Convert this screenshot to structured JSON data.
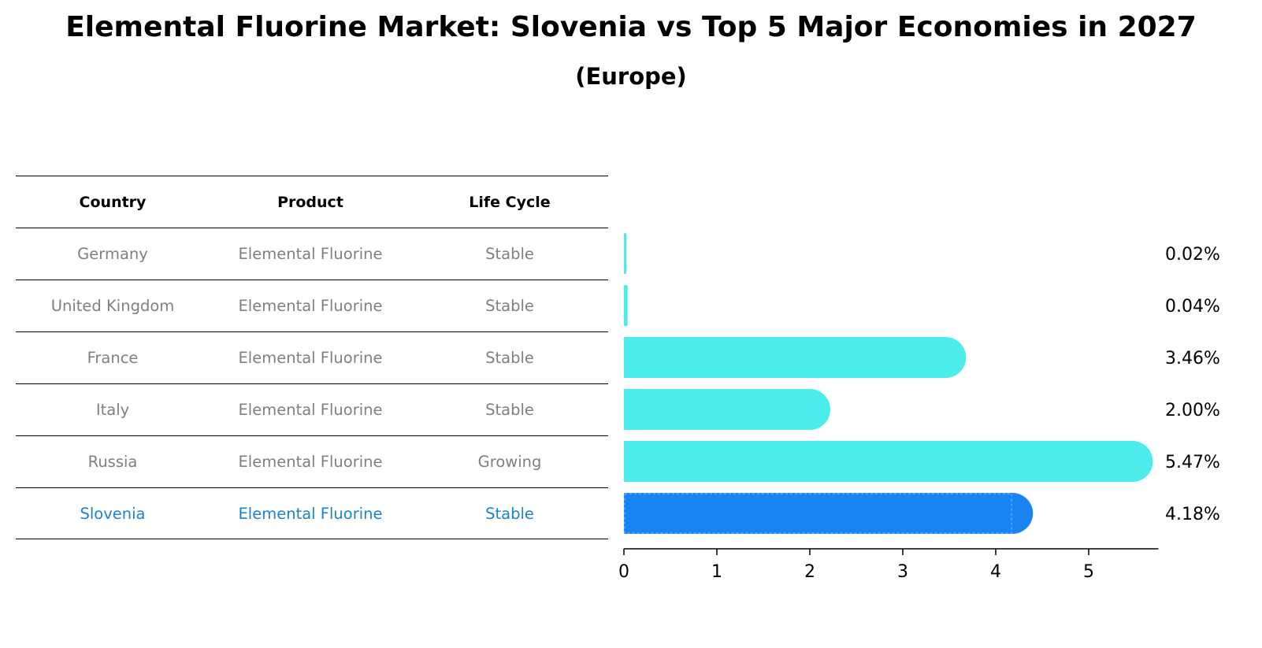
{
  "title": "Elemental Fluorine Market: Slovenia vs Top 5 Major Economies in 2027",
  "subtitle": "(Europe)",
  "table": {
    "headers": [
      "Country",
      "Product",
      "Life Cycle"
    ],
    "rows": [
      [
        "Germany",
        "Elemental Fluorine",
        "Stable"
      ],
      [
        "United Kingdom",
        "Elemental Fluorine",
        "Stable"
      ],
      [
        "France",
        "Elemental Fluorine",
        "Stable"
      ],
      [
        "Italy",
        "Elemental Fluorine",
        "Stable"
      ],
      [
        "Russia",
        "Elemental Fluorine",
        "Growing"
      ],
      [
        "Slovenia",
        "Elemental Fluorine",
        "Stable"
      ]
    ]
  },
  "colors": {
    "bar": "#4bece9",
    "highlight": "#1a84f3",
    "highlight_text": "#1a84cf",
    "muted_text": "#808080"
  },
  "chart_data": {
    "type": "bar",
    "orientation": "horizontal",
    "categories": [
      "Germany",
      "United Kingdom",
      "France",
      "Italy",
      "Russia",
      "Slovenia"
    ],
    "values": [
      0.02,
      0.04,
      3.46,
      2.0,
      5.47,
      4.18
    ],
    "value_labels": [
      "0.02%",
      "0.04%",
      "3.46%",
      "2.00%",
      "5.47%",
      "4.18%"
    ],
    "highlight": "Slovenia",
    "xticks": [
      0,
      1,
      2,
      3,
      4,
      5
    ],
    "xlim": [
      0,
      5.75
    ]
  }
}
